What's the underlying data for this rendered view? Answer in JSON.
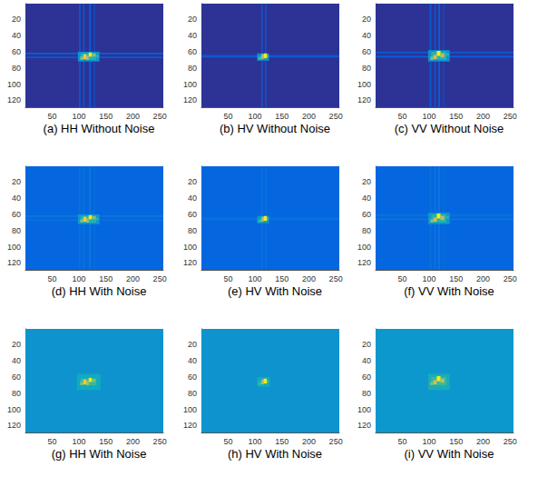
{
  "chart_data": [
    {
      "type": "heatmap",
      "title": "(a) HH Without Noise",
      "xlim": [
        0.5,
        256.5
      ],
      "ylim": [
        0.5,
        128.5
      ],
      "xticks": [
        50,
        100,
        150,
        200,
        250
      ],
      "yticks": [
        20,
        40,
        60,
        80,
        100,
        120
      ],
      "value_range": [
        0,
        1
      ],
      "cells": [
        [
          0.5,
          256.5,
          0.5,
          128.5,
          0.02
        ],
        [
          0.5,
          256.5,
          61,
          63,
          0.12
        ],
        [
          0.5,
          256.5,
          66,
          68,
          0.1
        ],
        [
          100,
          103,
          0.5,
          128.5,
          0.1
        ],
        [
          108,
          110,
          0.5,
          128.5,
          0.12
        ],
        [
          119,
          122,
          0.5,
          128.5,
          0.12
        ],
        [
          128,
          130,
          0.5,
          128.5,
          0.08
        ],
        [
          98,
          138,
          60,
          72,
          0.3
        ],
        [
          103,
          132,
          62,
          70,
          0.45
        ],
        [
          102,
          108,
          66,
          70,
          0.6
        ],
        [
          108,
          114,
          63,
          69,
          0.85
        ],
        [
          114,
          118,
          65,
          70,
          0.7
        ],
        [
          118,
          124,
          61,
          66,
          0.95
        ],
        [
          125,
          131,
          62,
          66,
          0.6
        ],
        [
          132,
          137,
          64,
          67,
          0.45
        ]
      ]
    },
    {
      "type": "heatmap",
      "title": "(b) HV Without Noise",
      "xlim": [
        0.5,
        256.5
      ],
      "ylim": [
        0.5,
        128.5
      ],
      "xticks": [
        50,
        100,
        150,
        200,
        250
      ],
      "yticks": [
        20,
        40,
        60,
        80,
        100,
        120
      ],
      "value_range": [
        0,
        1
      ],
      "cells": [
        [
          0.5,
          256.5,
          0.5,
          128.5,
          0.02
        ],
        [
          0.5,
          256.5,
          64,
          67,
          0.1
        ],
        [
          112,
          114,
          0.5,
          128.5,
          0.12
        ],
        [
          119,
          121,
          0.5,
          128.5,
          0.1
        ],
        [
          104,
          126,
          62,
          71,
          0.3
        ],
        [
          106,
          112,
          66,
          70,
          0.5
        ],
        [
          112,
          116,
          63,
          69,
          0.7
        ],
        [
          116,
          122,
          62,
          68,
          0.95
        ],
        [
          122,
          125,
          64,
          67,
          0.55
        ]
      ]
    },
    {
      "type": "heatmap",
      "title": "(c) VV Without Noise",
      "xlim": [
        0.5,
        256.5
      ],
      "ylim": [
        0.5,
        128.5
      ],
      "xticks": [
        50,
        100,
        150,
        200,
        250
      ],
      "yticks": [
        20,
        40,
        60,
        80,
        100,
        120
      ],
      "value_range": [
        0,
        1
      ],
      "cells": [
        [
          0.5,
          256.5,
          0.5,
          128.5,
          0.02
        ],
        [
          0.5,
          256.5,
          60,
          62,
          0.1
        ],
        [
          0.5,
          256.5,
          65,
          67,
          0.12
        ],
        [
          101,
          104,
          0.5,
          128.5,
          0.1
        ],
        [
          110,
          112,
          0.5,
          128.5,
          0.12
        ],
        [
          117,
          120,
          0.5,
          128.5,
          0.12
        ],
        [
          126,
          128,
          0.5,
          128.5,
          0.08
        ],
        [
          98,
          138,
          58,
          72,
          0.3
        ],
        [
          104,
          132,
          60,
          70,
          0.45
        ],
        [
          102,
          108,
          66,
          70,
          0.6
        ],
        [
          108,
          114,
          64,
          69,
          0.75
        ],
        [
          114,
          121,
          59,
          65,
          0.95
        ],
        [
          121,
          128,
          62,
          67,
          0.7
        ],
        [
          129,
          137,
          62,
          65,
          0.45
        ]
      ]
    },
    {
      "type": "heatmap",
      "title": "(d) HH With Noise",
      "xlim": [
        0.5,
        256.5
      ],
      "ylim": [
        0.5,
        128.5
      ],
      "xticks": [
        50,
        100,
        150,
        200,
        250
      ],
      "yticks": [
        20,
        40,
        60,
        80,
        100,
        120
      ],
      "value_range": [
        0,
        1
      ],
      "cells": [
        [
          0.5,
          256.5,
          0.5,
          128.5,
          0.14
        ],
        [
          0.5,
          256.5,
          61,
          63,
          0.2
        ],
        [
          0.5,
          256.5,
          66,
          68,
          0.18
        ],
        [
          100,
          103,
          0.5,
          128.5,
          0.18
        ],
        [
          108,
          110,
          0.5,
          128.5,
          0.2
        ],
        [
          119,
          122,
          0.5,
          128.5,
          0.2
        ],
        [
          128,
          130,
          0.5,
          128.5,
          0.17
        ],
        [
          98,
          138,
          60,
          72,
          0.32
        ],
        [
          103,
          132,
          62,
          70,
          0.45
        ],
        [
          102,
          108,
          66,
          70,
          0.6
        ],
        [
          108,
          114,
          63,
          69,
          0.85
        ],
        [
          114,
          118,
          65,
          70,
          0.7
        ],
        [
          118,
          124,
          61,
          66,
          0.95
        ],
        [
          125,
          131,
          62,
          66,
          0.6
        ],
        [
          132,
          137,
          64,
          67,
          0.45
        ]
      ]
    },
    {
      "type": "heatmap",
      "title": "(e) HV With Noise",
      "xlim": [
        0.5,
        256.5
      ],
      "ylim": [
        0.5,
        128.5
      ],
      "xticks": [
        50,
        100,
        150,
        200,
        250
      ],
      "yticks": [
        20,
        40,
        60,
        80,
        100,
        120
      ],
      "value_range": [
        0,
        1
      ],
      "cells": [
        [
          0.5,
          256.5,
          0.5,
          128.5,
          0.14
        ],
        [
          0.5,
          256.5,
          64,
          67,
          0.18
        ],
        [
          112,
          114,
          0.5,
          128.5,
          0.19
        ],
        [
          119,
          121,
          0.5,
          128.5,
          0.18
        ],
        [
          104,
          126,
          62,
          71,
          0.32
        ],
        [
          106,
          112,
          66,
          70,
          0.5
        ],
        [
          112,
          116,
          63,
          69,
          0.7
        ],
        [
          116,
          122,
          62,
          68,
          0.95
        ],
        [
          122,
          125,
          64,
          67,
          0.55
        ]
      ]
    },
    {
      "type": "heatmap",
      "title": "(f) VV With Noise",
      "xlim": [
        0.5,
        256.5
      ],
      "ylim": [
        0.5,
        128.5
      ],
      "xticks": [
        50,
        100,
        150,
        200,
        250
      ],
      "yticks": [
        20,
        40,
        60,
        80,
        100,
        120
      ],
      "value_range": [
        0,
        1
      ],
      "cells": [
        [
          0.5,
          256.5,
          0.5,
          128.5,
          0.14
        ],
        [
          0.5,
          256.5,
          60,
          62,
          0.18
        ],
        [
          0.5,
          256.5,
          65,
          67,
          0.2
        ],
        [
          101,
          104,
          0.5,
          128.5,
          0.18
        ],
        [
          110,
          112,
          0.5,
          128.5,
          0.2
        ],
        [
          117,
          120,
          0.5,
          128.5,
          0.2
        ],
        [
          126,
          128,
          0.5,
          128.5,
          0.17
        ],
        [
          98,
          138,
          58,
          72,
          0.32
        ],
        [
          104,
          132,
          60,
          70,
          0.45
        ],
        [
          102,
          108,
          66,
          70,
          0.6
        ],
        [
          108,
          114,
          64,
          69,
          0.75
        ],
        [
          114,
          121,
          59,
          65,
          0.95
        ],
        [
          121,
          128,
          62,
          67,
          0.7
        ],
        [
          129,
          137,
          62,
          65,
          0.45
        ]
      ]
    },
    {
      "type": "heatmap",
      "title": "(g) HH With Noise",
      "xlim": [
        0.5,
        256.5
      ],
      "ylim": [
        0.5,
        128.5
      ],
      "xticks": [
        50,
        100,
        150,
        200,
        250
      ],
      "yticks": [
        20,
        40,
        60,
        80,
        100,
        120
      ],
      "value_range": [
        0,
        1
      ],
      "cells": [
        [
          0.5,
          256.5,
          0.5,
          128.5,
          0.3
        ],
        [
          96,
          140,
          56,
          76,
          0.4
        ],
        [
          103,
          132,
          62,
          70,
          0.5
        ],
        [
          102,
          108,
          66,
          70,
          0.6
        ],
        [
          108,
          114,
          63,
          69,
          0.85
        ],
        [
          114,
          118,
          65,
          70,
          0.7
        ],
        [
          118,
          124,
          61,
          66,
          0.95
        ],
        [
          125,
          131,
          62,
          66,
          0.6
        ]
      ]
    },
    {
      "type": "heatmap",
      "title": "(h) HV With Noise",
      "xlim": [
        0.5,
        256.5
      ],
      "ylim": [
        0.5,
        128.5
      ],
      "xticks": [
        50,
        100,
        150,
        200,
        250
      ],
      "yticks": [
        20,
        40,
        60,
        80,
        100,
        120
      ],
      "value_range": [
        0,
        1
      ],
      "cells": [
        [
          0.5,
          256.5,
          0.5,
          128.5,
          0.3
        ],
        [
          104,
          128,
          60,
          72,
          0.4
        ],
        [
          106,
          112,
          66,
          70,
          0.5
        ],
        [
          112,
          116,
          63,
          69,
          0.7
        ],
        [
          116,
          122,
          62,
          68,
          0.95
        ],
        [
          122,
          125,
          64,
          67,
          0.55
        ]
      ]
    },
    {
      "type": "heatmap",
      "title": "(i) VV With Noise",
      "xlim": [
        0.5,
        256.5
      ],
      "ylim": [
        0.5,
        128.5
      ],
      "xticks": [
        50,
        100,
        150,
        200,
        250
      ],
      "yticks": [
        20,
        40,
        60,
        80,
        100,
        120
      ],
      "value_range": [
        0,
        1
      ],
      "cells": [
        [
          0.5,
          256.5,
          0.5,
          128.5,
          0.32
        ],
        [
          98,
          138,
          56,
          76,
          0.42
        ],
        [
          104,
          132,
          60,
          70,
          0.5
        ],
        [
          102,
          108,
          66,
          70,
          0.6
        ],
        [
          108,
          114,
          64,
          69,
          0.75
        ],
        [
          114,
          121,
          59,
          65,
          0.95
        ],
        [
          121,
          128,
          62,
          67,
          0.7
        ]
      ]
    }
  ]
}
